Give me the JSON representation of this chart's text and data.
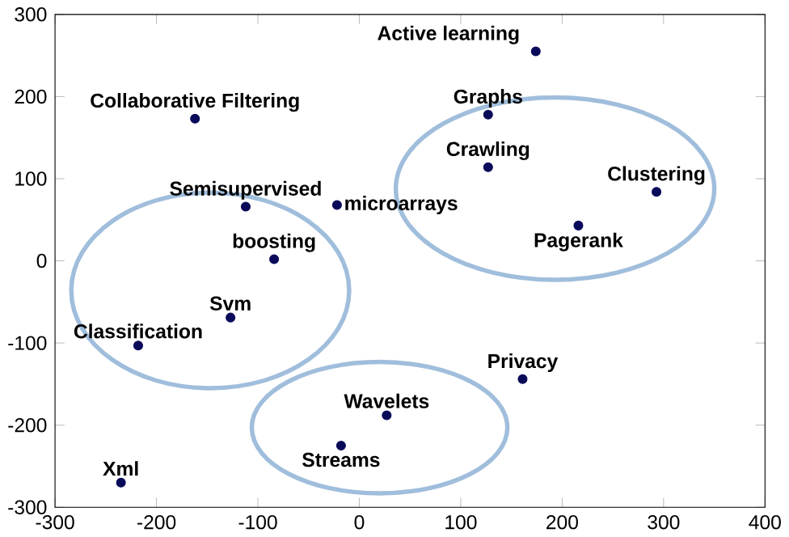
{
  "chart_data": {
    "type": "scatter",
    "xlim": [
      -300,
      400
    ],
    "ylim": [
      -300,
      300
    ],
    "xticks": [
      -300,
      -200,
      -100,
      0,
      100,
      200,
      300,
      400
    ],
    "yticks": [
      -300,
      -200,
      -100,
      0,
      100,
      200,
      300
    ],
    "marker": "circle",
    "series": [
      {
        "color": "#0a0a5a",
        "x": [
          174,
          -162,
          127,
          127,
          293,
          216,
          -22,
          -112,
          -84,
          -127,
          -218,
          161,
          27,
          -18,
          -235
        ],
        "values": [
          255,
          173,
          178,
          114,
          84,
          43,
          68,
          66,
          2,
          -69,
          -103,
          -144,
          -188,
          -225,
          -270
        ]
      }
    ],
    "annotations": [
      {
        "text": "Active learning",
        "x": 174,
        "y": 255
      },
      {
        "text": "Collaborative Filtering",
        "x": -162,
        "y": 173
      },
      {
        "text": "Graphs",
        "x": 127,
        "y": 178
      },
      {
        "text": "Crawling",
        "x": 127,
        "y": 114
      },
      {
        "text": "Clustering",
        "x": 293,
        "y": 84
      },
      {
        "text": "Pagerank",
        "x": 216,
        "y": 43
      },
      {
        "text": "microarrays",
        "x": -22,
        "y": 68
      },
      {
        "text": "Semisupervised",
        "x": -112,
        "y": 66
      },
      {
        "text": "boosting",
        "x": -84,
        "y": 2
      },
      {
        "text": "Svm",
        "x": -127,
        "y": -69
      },
      {
        "text": "Classification",
        "x": -218,
        "y": -103
      },
      {
        "text": "Privacy",
        "x": 161,
        "y": -144
      },
      {
        "text": "Wavelets",
        "x": 27,
        "y": -188
      },
      {
        "text": "Streams",
        "x": -18,
        "y": -225
      },
      {
        "text": "Xml",
        "x": -235,
        "y": -270
      }
    ]
  }
}
